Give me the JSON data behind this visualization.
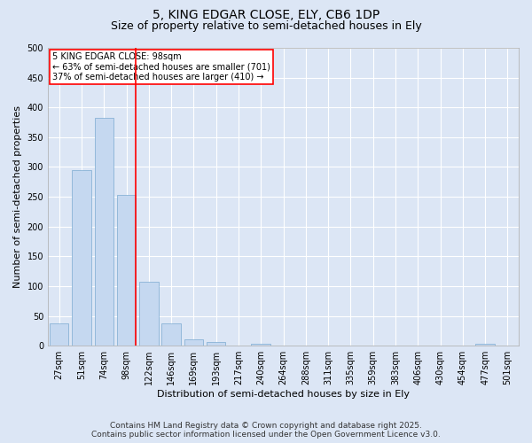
{
  "title": "5, KING EDGAR CLOSE, ELY, CB6 1DP",
  "subtitle": "Size of property relative to semi-detached houses in Ely",
  "xlabel": "Distribution of semi-detached houses by size in Ely",
  "ylabel": "Number of semi-detached properties",
  "categories": [
    "27sqm",
    "51sqm",
    "74sqm",
    "98sqm",
    "122sqm",
    "146sqm",
    "169sqm",
    "193sqm",
    "217sqm",
    "240sqm",
    "264sqm",
    "288sqm",
    "311sqm",
    "335sqm",
    "359sqm",
    "383sqm",
    "406sqm",
    "430sqm",
    "454sqm",
    "477sqm",
    "501sqm"
  ],
  "values": [
    37,
    295,
    383,
    253,
    108,
    37,
    10,
    6,
    0,
    4,
    0,
    0,
    0,
    0,
    0,
    0,
    0,
    0,
    0,
    4,
    0
  ],
  "bar_color": "#c5d8f0",
  "bar_edge_color": "#7aaad0",
  "vline_x_index": 3,
  "vline_color": "red",
  "annotation_text": "5 KING EDGAR CLOSE: 98sqm\n← 63% of semi-detached houses are smaller (701)\n37% of semi-detached houses are larger (410) →",
  "annotation_box_color": "white",
  "annotation_box_edge": "red",
  "ylim": [
    0,
    500
  ],
  "yticks": [
    0,
    50,
    100,
    150,
    200,
    250,
    300,
    350,
    400,
    450,
    500
  ],
  "background_color": "#dce6f5",
  "plot_background": "#dce6f5",
  "grid_color": "white",
  "footer": "Contains HM Land Registry data © Crown copyright and database right 2025.\nContains public sector information licensed under the Open Government Licence v3.0.",
  "title_fontsize": 10,
  "subtitle_fontsize": 9,
  "xlabel_fontsize": 8,
  "ylabel_fontsize": 8,
  "tick_fontsize": 7,
  "annotation_fontsize": 7,
  "footer_fontsize": 6.5
}
